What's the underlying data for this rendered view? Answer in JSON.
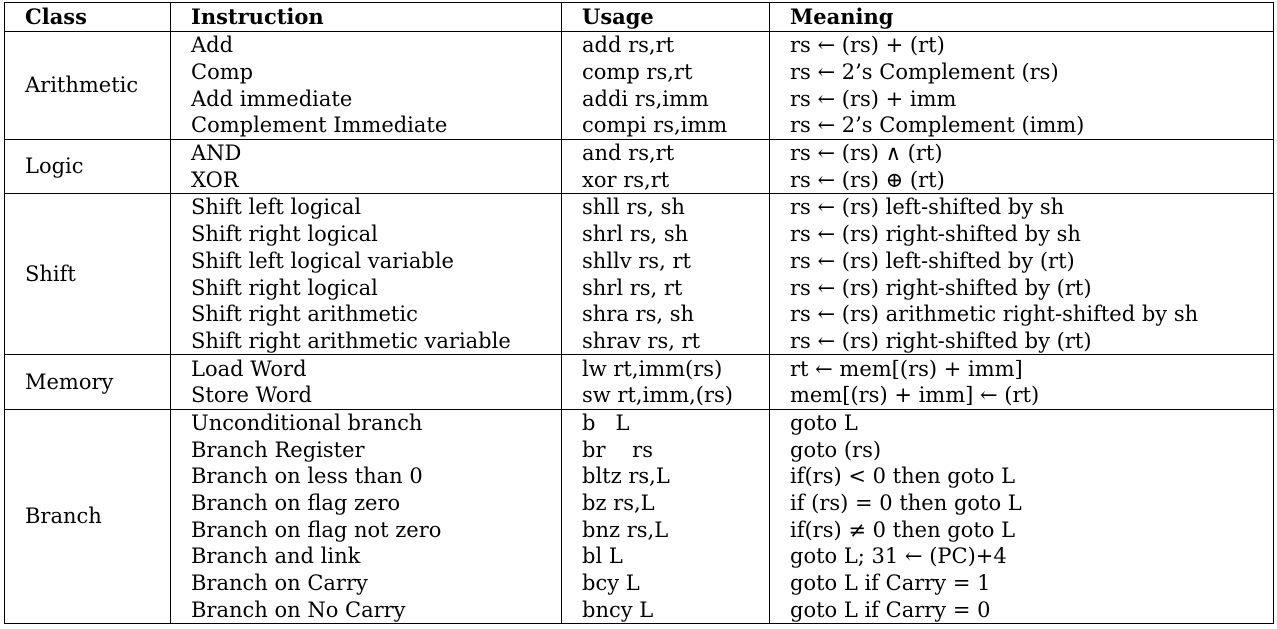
{
  "headers": [
    "Class",
    "Instruction",
    "Usage",
    "Meaning"
  ],
  "groups": [
    {
      "class": "Arithmetic",
      "rows": [
        {
          "instruction": "Add",
          "usage": "add rs,rt",
          "meaning": "rs ← (rs) + (rt)"
        },
        {
          "instruction": "Comp",
          "usage": "comp rs,rt",
          "meaning": "rs ← 2’s Complement (rs)"
        },
        {
          "instruction": "Add immediate",
          "usage": "addi rs,imm",
          "meaning": "rs ← (rs) + imm"
        },
        {
          "instruction": "Complement Immediate",
          "usage": "compi rs,imm",
          "meaning": "rs ← 2’s Complement (imm)"
        }
      ]
    },
    {
      "class": "Logic",
      "rows": [
        {
          "instruction": "AND",
          "usage": "and rs,rt",
          "meaning": "rs ← (rs) ∧ (rt)"
        },
        {
          "instruction": "XOR",
          "usage": "xor rs,rt",
          "meaning": "rs ← (rs) ⊕ (rt)"
        }
      ]
    },
    {
      "class": "Shift",
      "rows": [
        {
          "instruction": "Shift left logical",
          "usage": "shll rs, sh",
          "meaning": "rs ← (rs) left-shifted by sh"
        },
        {
          "instruction": "Shift right logical",
          "usage": "shrl rs, sh",
          "meaning": "rs ← (rs) right-shifted by sh"
        },
        {
          "instruction": "Shift left logical variable",
          "usage": "shllv rs, rt",
          "meaning": "rs ← (rs) left-shifted by (rt)"
        },
        {
          "instruction": "Shift right logical",
          "usage": "shrl rs, rt",
          "meaning": "rs ← (rs) right-shifted by (rt)"
        },
        {
          "instruction": "Shift right arithmetic",
          "usage": "shra rs, sh",
          "meaning": "rs ← (rs) arithmetic right-shifted by sh"
        },
        {
          "instruction": "Shift right arithmetic variable",
          "usage": "shrav rs, rt",
          "meaning": "rs ← (rs) right-shifted by (rt)"
        }
      ]
    },
    {
      "class": "Memory",
      "rows": [
        {
          "instruction": "Load Word",
          "usage": "lw rt,imm(rs)",
          "meaning": "rt ← mem[(rs) + imm]"
        },
        {
          "instruction": "Store Word",
          "usage": "sw rt,imm,(rs)",
          "meaning": "mem[(rs) + imm] ← (rt)"
        }
      ]
    },
    {
      "class": "Branch",
      "rows": [
        {
          "instruction": "Unconditional branch",
          "usage": "b   L",
          "meaning": "goto L"
        },
        {
          "instruction": "Branch Register",
          "usage": "br    rs",
          "meaning": "goto (rs)"
        },
        {
          "instruction": "Branch on less than 0",
          "usage": "bltz rs,L",
          "meaning": "if(rs) < 0 then goto L"
        },
        {
          "instruction": "Branch on flag zero",
          "usage": "bz rs,L",
          "meaning": "if (rs) = 0 then goto L"
        },
        {
          "instruction": "Branch on flag not zero",
          "usage": "bnz rs,L",
          "meaning": "if(rs) ≠ 0 then goto L"
        },
        {
          "instruction": "Branch and link",
          "usage": "bl L",
          "meaning": "goto L; 31 ← (PC)+4"
        },
        {
          "instruction": "Branch on Carry",
          "usage": "bcy L",
          "meaning": "goto L if Carry = 1"
        },
        {
          "instruction": "Branch on No Carry",
          "usage": "bncy L",
          "meaning": "goto L if Carry = 0"
        }
      ]
    }
  ]
}
